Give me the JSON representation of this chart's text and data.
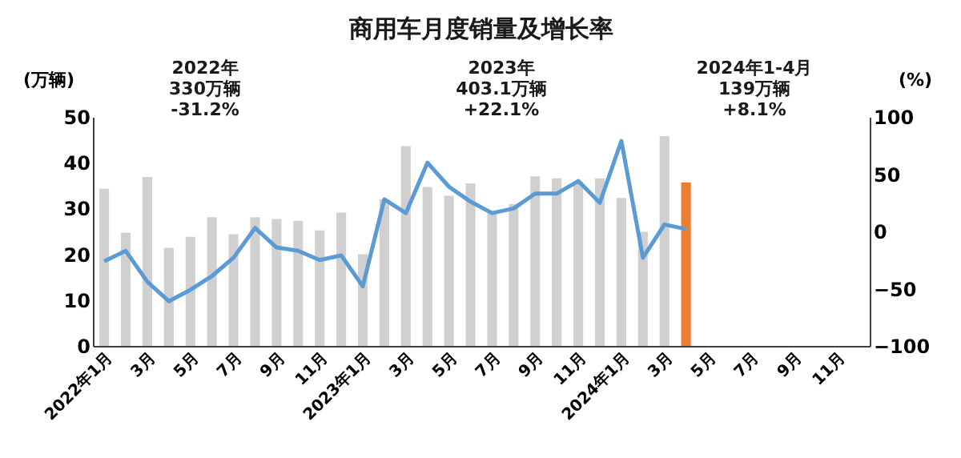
{
  "chart_data": {
    "type": "bar",
    "title": "商用车月度销量及增长率",
    "ylabel": "(万辆)",
    "y2label": "(%)",
    "categories": [
      "2022年1月",
      null,
      "3月",
      null,
      "5月",
      null,
      "7月",
      null,
      "9月",
      null,
      "11月",
      null,
      "2023年1月",
      null,
      "3月",
      null,
      "5月",
      null,
      "7月",
      null,
      "9月",
      null,
      "11月",
      null,
      "2024年1月",
      null,
      "3月",
      null,
      "5月",
      null,
      "7月",
      null,
      "9月",
      null,
      "11月",
      null
    ],
    "series": [
      {
        "colors": [
          "#d0d0d0",
          "#d0d0d0",
          "#d0d0d0",
          "#d0d0d0",
          "#d0d0d0",
          "#d0d0d0",
          "#d0d0d0",
          "#d0d0d0",
          "#d0d0d0",
          "#d0d0d0",
          "#d0d0d0",
          "#d0d0d0",
          "#d0d0d0",
          "#d0d0d0",
          "#d0d0d0",
          "#d0d0d0",
          "#d0d0d0",
          "#d0d0d0",
          "#d0d0d0",
          "#d0d0d0",
          "#d0d0d0",
          "#d0d0d0",
          "#d0d0d0",
          "#d0d0d0",
          "#d0d0d0",
          "#d0d0d0",
          "#d0d0d0",
          "#ed7d31",
          null,
          null,
          null,
          null,
          null,
          null,
          null,
          null
        ],
        "values": [
          34.3,
          24.7,
          36.9,
          21.4,
          23.8,
          28.1,
          24.4,
          28.1,
          27.7,
          27.3,
          25.2,
          29.1,
          20,
          32,
          43.6,
          34.7,
          32.8,
          35.5,
          29,
          31,
          37,
          36.6,
          35.8,
          36.6,
          32.3,
          24.9,
          45.8,
          35.7,
          null,
          null,
          null,
          null,
          null,
          null,
          null,
          null
        ]
      },
      {
        "type": "line",
        "axis": "y2",
        "color": "#5b9bd5",
        "values": [
          -26,
          -17,
          -44,
          -61,
          -51,
          -39,
          -23,
          3,
          -14,
          -17,
          -25,
          -21,
          -48,
          28,
          16,
          60,
          39,
          26,
          16,
          20,
          33,
          33,
          44,
          25,
          79,
          -23,
          6,
          2,
          null,
          null,
          null,
          null,
          null,
          null,
          null,
          null
        ]
      }
    ],
    "ylim": [
      0,
      50
    ],
    "yticks": [
      0,
      10,
      20,
      30,
      40,
      50
    ],
    "y2lim": [
      -100,
      100
    ],
    "y2ticks": [
      -100,
      -50,
      0,
      50,
      100
    ],
    "annotations": [
      "2022年",
      "330万辆",
      "-31.2%",
      "2023年",
      "403.1万辆",
      "+22.1%",
      "2024年1-4月",
      "139万辆",
      "+8.1%"
    ],
    "grid": false
  }
}
